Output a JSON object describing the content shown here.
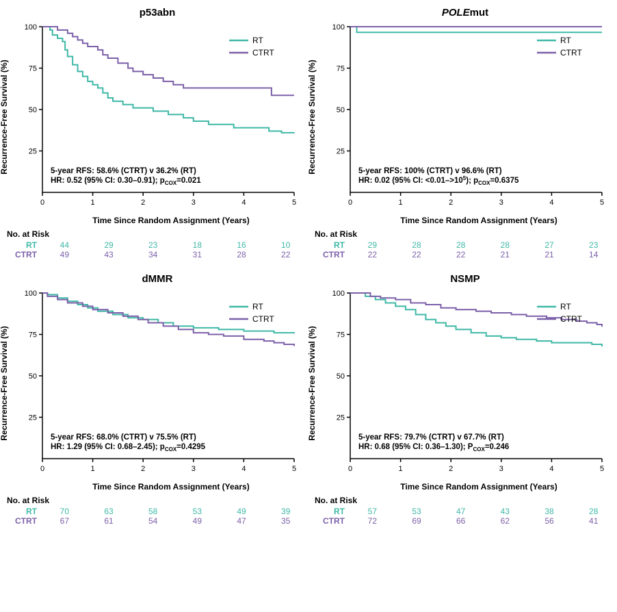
{
  "colors": {
    "rt": "#3eb8a6",
    "ctrt": "#7b5fa8",
    "axis": "#000000",
    "bg": "#ffffff"
  },
  "axis": {
    "xlabel": "Time Since Random Assignment (Years)",
    "ylabel": "Recurrence-Free Survival (%)",
    "xlim": [
      0,
      5
    ],
    "ylim": [
      0,
      100
    ],
    "xticks": [
      0,
      1,
      2,
      3,
      4,
      5
    ],
    "yticks": [
      25,
      50,
      75,
      100
    ]
  },
  "legend": {
    "items": [
      {
        "label": "RT",
        "color_key": "rt"
      },
      {
        "label": "CTRT",
        "color_key": "ctrt"
      }
    ]
  },
  "panels": [
    {
      "title": "p53abn",
      "stats": [
        "5-year RFS: 58.6% (CTRT) v 36.2% (RT)",
        "HR: 0.52 (95% CI: 0.30–0.91); p_{COX}=0.021"
      ],
      "series": {
        "rt": [
          {
            "t": 0,
            "s": 100
          },
          {
            "t": 0.1,
            "s": 100
          },
          {
            "t": 0.15,
            "s": 98
          },
          {
            "t": 0.2,
            "s": 95
          },
          {
            "t": 0.3,
            "s": 93
          },
          {
            "t": 0.4,
            "s": 91
          },
          {
            "t": 0.45,
            "s": 86
          },
          {
            "t": 0.5,
            "s": 82
          },
          {
            "t": 0.6,
            "s": 77
          },
          {
            "t": 0.7,
            "s": 73
          },
          {
            "t": 0.8,
            "s": 70
          },
          {
            "t": 0.9,
            "s": 67
          },
          {
            "t": 1.0,
            "s": 65
          },
          {
            "t": 1.1,
            "s": 63
          },
          {
            "t": 1.2,
            "s": 60
          },
          {
            "t": 1.3,
            "s": 57
          },
          {
            "t": 1.4,
            "s": 55
          },
          {
            "t": 1.6,
            "s": 53
          },
          {
            "t": 1.8,
            "s": 51
          },
          {
            "t": 2.0,
            "s": 51
          },
          {
            "t": 2.2,
            "s": 49
          },
          {
            "t": 2.5,
            "s": 47
          },
          {
            "t": 2.8,
            "s": 45
          },
          {
            "t": 3.0,
            "s": 43
          },
          {
            "t": 3.3,
            "s": 41
          },
          {
            "t": 3.5,
            "s": 41
          },
          {
            "t": 3.8,
            "s": 39
          },
          {
            "t": 4.0,
            "s": 39
          },
          {
            "t": 4.5,
            "s": 37
          },
          {
            "t": 4.7,
            "s": 37
          },
          {
            "t": 4.75,
            "s": 36
          },
          {
            "t": 5.0,
            "s": 36.2
          }
        ],
        "ctrt": [
          {
            "t": 0,
            "s": 100
          },
          {
            "t": 0.2,
            "s": 100
          },
          {
            "t": 0.3,
            "s": 98
          },
          {
            "t": 0.5,
            "s": 96
          },
          {
            "t": 0.6,
            "s": 94
          },
          {
            "t": 0.7,
            "s": 92
          },
          {
            "t": 0.8,
            "s": 90
          },
          {
            "t": 0.9,
            "s": 88
          },
          {
            "t": 1.0,
            "s": 88
          },
          {
            "t": 1.1,
            "s": 86
          },
          {
            "t": 1.2,
            "s": 83
          },
          {
            "t": 1.3,
            "s": 81
          },
          {
            "t": 1.5,
            "s": 78
          },
          {
            "t": 1.7,
            "s": 75
          },
          {
            "t": 1.8,
            "s": 73
          },
          {
            "t": 2.0,
            "s": 71
          },
          {
            "t": 2.2,
            "s": 69
          },
          {
            "t": 2.4,
            "s": 67
          },
          {
            "t": 2.6,
            "s": 65
          },
          {
            "t": 2.8,
            "s": 63
          },
          {
            "t": 3.0,
            "s": 63
          },
          {
            "t": 3.5,
            "s": 63
          },
          {
            "t": 4.0,
            "s": 63
          },
          {
            "t": 4.5,
            "s": 63
          },
          {
            "t": 4.55,
            "s": 58.6
          },
          {
            "t": 5.0,
            "s": 58.6
          }
        ]
      },
      "risk": {
        "title": "No. at Risk",
        "rows": [
          {
            "label": "RT",
            "color_key": "rt",
            "vals": [
              44,
              29,
              23,
              18,
              16,
              10
            ]
          },
          {
            "label": "CTRT",
            "color_key": "ctrt",
            "vals": [
              49,
              43,
              34,
              31,
              28,
              22
            ]
          }
        ]
      }
    },
    {
      "title": "POLEmut",
      "title_italic_part": "POLE",
      "stats": [
        "5-year RFS: 100% (CTRT) v 96.6% (RT)",
        "HR: 0.02 (95% CI: <0.01–>10^{5}); p_{COX}=0.6375"
      ],
      "series": {
        "rt": [
          {
            "t": 0,
            "s": 100
          },
          {
            "t": 0.12,
            "s": 100
          },
          {
            "t": 0.13,
            "s": 96.6
          },
          {
            "t": 5.0,
            "s": 96.6
          }
        ],
        "ctrt": [
          {
            "t": 0,
            "s": 100
          },
          {
            "t": 5.0,
            "s": 100
          }
        ]
      },
      "risk": {
        "title": "No. at Risk",
        "rows": [
          {
            "label": "RT",
            "color_key": "rt",
            "vals": [
              29,
              28,
              28,
              28,
              27,
              23
            ]
          },
          {
            "label": "CTRT",
            "color_key": "ctrt",
            "vals": [
              22,
              22,
              22,
              21,
              21,
              14
            ]
          }
        ]
      }
    },
    {
      "title": "dMMR",
      "stats": [
        "5-year RFS: 68.0% (CTRT) v 75.5% (RT)",
        "HR: 1.29 (95% CI: 0.68–2.45); p_{COX}=0.4295"
      ],
      "series": {
        "rt": [
          {
            "t": 0,
            "s": 100
          },
          {
            "t": 0.1,
            "s": 99
          },
          {
            "t": 0.3,
            "s": 97
          },
          {
            "t": 0.5,
            "s": 95
          },
          {
            "t": 0.7,
            "s": 93
          },
          {
            "t": 0.9,
            "s": 91
          },
          {
            "t": 1.1,
            "s": 89
          },
          {
            "t": 1.4,
            "s": 87
          },
          {
            "t": 1.7,
            "s": 85
          },
          {
            "t": 2.0,
            "s": 84
          },
          {
            "t": 2.3,
            "s": 82
          },
          {
            "t": 2.6,
            "s": 80
          },
          {
            "t": 3.0,
            "s": 79
          },
          {
            "t": 3.5,
            "s": 78
          },
          {
            "t": 4.0,
            "s": 77
          },
          {
            "t": 4.3,
            "s": 77
          },
          {
            "t": 4.6,
            "s": 76
          },
          {
            "t": 5.0,
            "s": 75.5
          }
        ],
        "ctrt": [
          {
            "t": 0,
            "s": 100
          },
          {
            "t": 0.1,
            "s": 98
          },
          {
            "t": 0.3,
            "s": 96
          },
          {
            "t": 0.5,
            "s": 94
          },
          {
            "t": 0.8,
            "s": 92
          },
          {
            "t": 1.0,
            "s": 90
          },
          {
            "t": 1.3,
            "s": 88
          },
          {
            "t": 1.6,
            "s": 86
          },
          {
            "t": 1.9,
            "s": 84
          },
          {
            "t": 2.1,
            "s": 82
          },
          {
            "t": 2.4,
            "s": 80
          },
          {
            "t": 2.7,
            "s": 78
          },
          {
            "t": 3.0,
            "s": 76
          },
          {
            "t": 3.3,
            "s": 75
          },
          {
            "t": 3.6,
            "s": 74
          },
          {
            "t": 4.0,
            "s": 72
          },
          {
            "t": 4.4,
            "s": 71
          },
          {
            "t": 4.6,
            "s": 70
          },
          {
            "t": 4.8,
            "s": 69
          },
          {
            "t": 5.0,
            "s": 68.0
          }
        ]
      },
      "risk": {
        "title": "No. at Risk",
        "rows": [
          {
            "label": "RT",
            "color_key": "rt",
            "vals": [
              70,
              63,
              58,
              53,
              49,
              39
            ]
          },
          {
            "label": "CTRT",
            "color_key": "ctrt",
            "vals": [
              67,
              61,
              54,
              49,
              47,
              35
            ]
          }
        ]
      }
    },
    {
      "title": "NSMP",
      "stats": [
        "5-year RFS: 79.7% (CTRT) v 67.7% (RT)",
        "HR: 0.68 (95% CI: 0.36–1.30); P_{COX}=0.246"
      ],
      "series": {
        "rt": [
          {
            "t": 0,
            "s": 100
          },
          {
            "t": 0.2,
            "s": 100
          },
          {
            "t": 0.3,
            "s": 98
          },
          {
            "t": 0.5,
            "s": 96
          },
          {
            "t": 0.7,
            "s": 94
          },
          {
            "t": 0.9,
            "s": 92
          },
          {
            "t": 1.1,
            "s": 90
          },
          {
            "t": 1.3,
            "s": 87
          },
          {
            "t": 1.5,
            "s": 84
          },
          {
            "t": 1.7,
            "s": 82
          },
          {
            "t": 1.9,
            "s": 80
          },
          {
            "t": 2.1,
            "s": 78
          },
          {
            "t": 2.4,
            "s": 76
          },
          {
            "t": 2.7,
            "s": 74
          },
          {
            "t": 3.0,
            "s": 73
          },
          {
            "t": 3.3,
            "s": 72
          },
          {
            "t": 3.7,
            "s": 71
          },
          {
            "t": 4.0,
            "s": 70
          },
          {
            "t": 4.3,
            "s": 70
          },
          {
            "t": 4.5,
            "s": 70
          },
          {
            "t": 4.8,
            "s": 69
          },
          {
            "t": 5.0,
            "s": 67.7
          }
        ],
        "ctrt": [
          {
            "t": 0,
            "s": 100
          },
          {
            "t": 0.3,
            "s": 100
          },
          {
            "t": 0.4,
            "s": 98
          },
          {
            "t": 0.6,
            "s": 97
          },
          {
            "t": 0.9,
            "s": 96
          },
          {
            "t": 1.2,
            "s": 94
          },
          {
            "t": 1.5,
            "s": 93
          },
          {
            "t": 1.8,
            "s": 91
          },
          {
            "t": 2.1,
            "s": 90
          },
          {
            "t": 2.5,
            "s": 89
          },
          {
            "t": 2.8,
            "s": 88
          },
          {
            "t": 3.2,
            "s": 87
          },
          {
            "t": 3.5,
            "s": 86
          },
          {
            "t": 3.9,
            "s": 85
          },
          {
            "t": 4.2,
            "s": 84
          },
          {
            "t": 4.5,
            "s": 83
          },
          {
            "t": 4.7,
            "s": 82
          },
          {
            "t": 4.9,
            "s": 81
          },
          {
            "t": 5.0,
            "s": 79.7
          }
        ]
      },
      "risk": {
        "title": "No. at Risk",
        "rows": [
          {
            "label": "RT",
            "color_key": "rt",
            "vals": [
              57,
              53,
              47,
              43,
              38,
              28
            ]
          },
          {
            "label": "CTRT",
            "color_key": "ctrt",
            "vals": [
              72,
              69,
              66,
              62,
              56,
              41
            ]
          }
        ]
      }
    }
  ]
}
